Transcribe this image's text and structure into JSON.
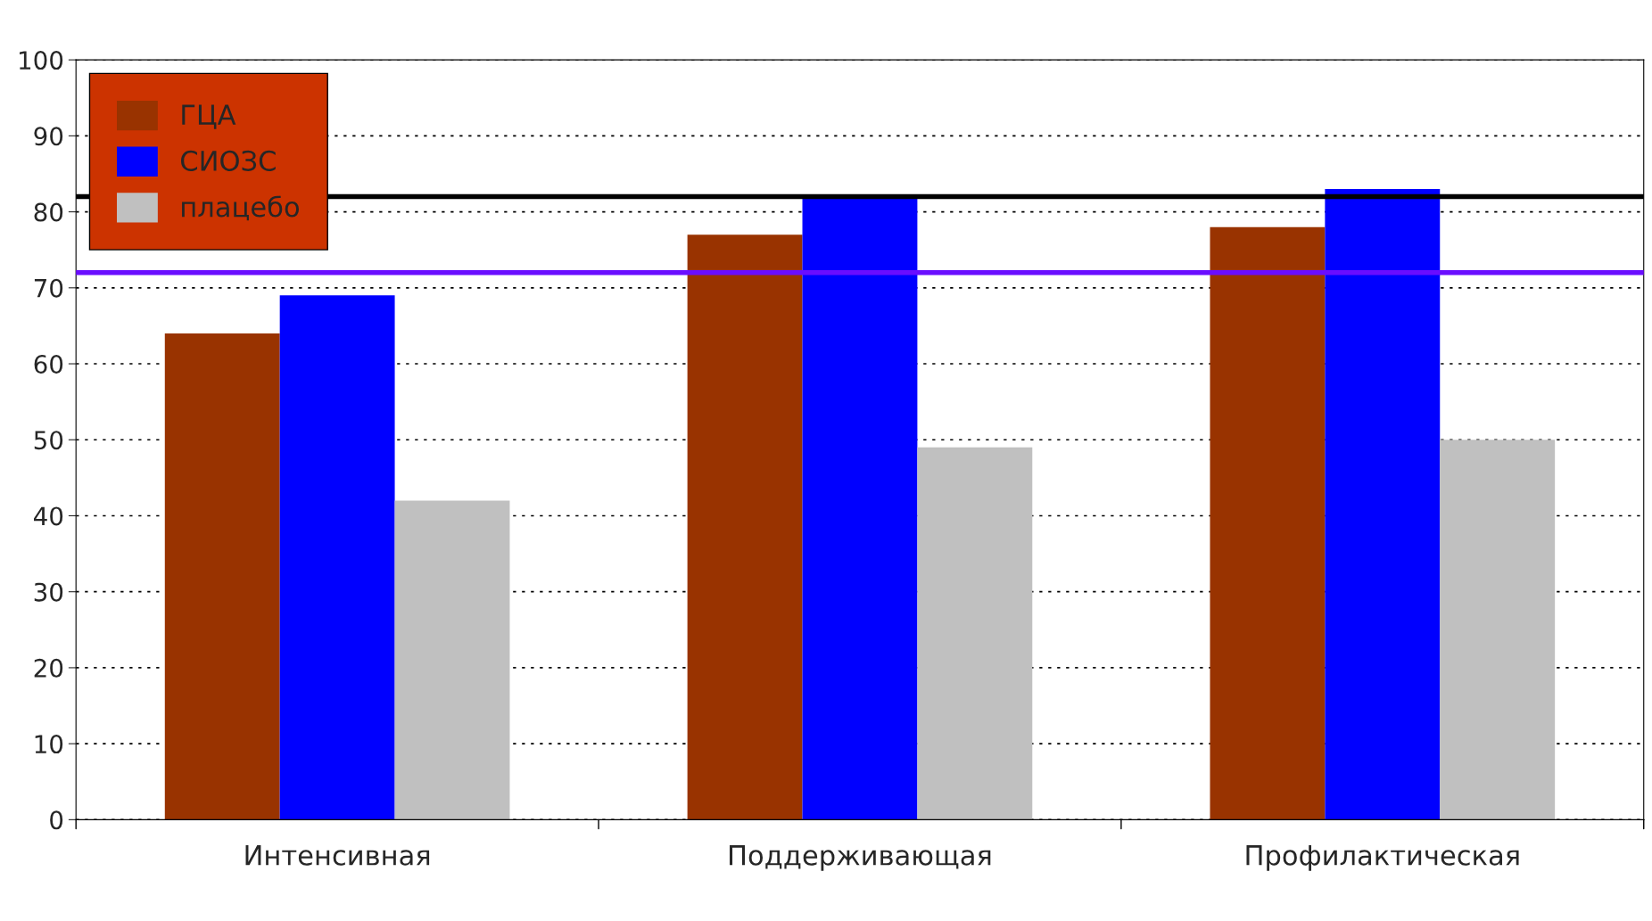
{
  "chart_data": {
    "type": "bar",
    "categories": [
      "Интенсивная",
      "Поддерживающая",
      "Профилактическая"
    ],
    "series": [
      {
        "name": "ГЦА",
        "color": "#993300",
        "values": [
          64,
          77,
          78
        ]
      },
      {
        "name": "СИОЗС",
        "color": "#0000ff",
        "values": [
          69,
          82,
          83
        ]
      },
      {
        "name": "плацебо",
        "color": "#c0c0c0",
        "values": [
          42,
          49,
          50
        ]
      }
    ],
    "ylim": [
      0,
      100
    ],
    "yticks": [
      0,
      10,
      20,
      30,
      40,
      50,
      60,
      70,
      80,
      90,
      100
    ],
    "ref_lines": [
      {
        "axis": "y",
        "value": 82,
        "color": "#000000"
      },
      {
        "axis": "y",
        "value": 72,
        "color": "#6a0dff"
      }
    ],
    "grid": "y",
    "legend": "top left"
  }
}
